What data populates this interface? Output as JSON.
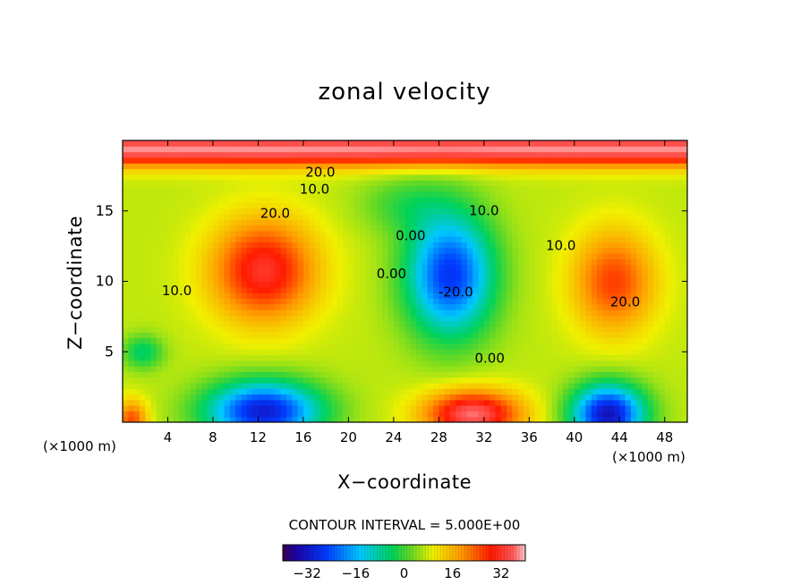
{
  "chart_data": {
    "type": "heatmap",
    "title": "zonal velocity",
    "xlabel": "X−coordinate",
    "ylabel": "Z−coordinate",
    "x_unit": "(×1000 m)",
    "xlim": [
      0,
      50
    ],
    "ylim": [
      0,
      20
    ],
    "x_ticks": [
      4,
      8,
      12,
      16,
      20,
      24,
      28,
      32,
      36,
      40,
      44,
      48
    ],
    "x_tick_labels": [
      "4",
      "8",
      "12",
      "16",
      "20",
      "24",
      "28",
      "32",
      "36",
      "40",
      "44",
      "48"
    ],
    "y_ticks": [
      5,
      10,
      15
    ],
    "y_tick_labels": [
      "5",
      "10",
      "15"
    ],
    "contour_interval_text": "CONTOUR INTERVAL = 5.000E+00",
    "contour_interval": 5,
    "colorbar": {
      "range": [
        -40,
        40
      ],
      "ticks": [
        -32,
        -16,
        0,
        16,
        32
      ],
      "tick_labels": [
        "−32",
        "−16",
        "0",
        "16",
        "32"
      ]
    },
    "features": [
      {
        "type": "jet",
        "name": "top jet",
        "x": 25,
        "z": 19.3,
        "peak": 38
      },
      {
        "type": "max",
        "name": "upper-left maximum",
        "x": 12.5,
        "z": 10.8,
        "peak": 34
      },
      {
        "type": "min",
        "name": "central minimum",
        "x": 29,
        "z": 10.5,
        "peak": -28
      },
      {
        "type": "max",
        "name": "right maximum",
        "x": 43.5,
        "z": 10,
        "peak": 25
      },
      {
        "type": "min",
        "name": "lower-left minimum",
        "x": 12.5,
        "z": 1,
        "peak": -32
      },
      {
        "type": "max",
        "name": "lower-center maximum",
        "x": 31,
        "z": 0.8,
        "peak": 36
      },
      {
        "type": "min",
        "name": "lower-right minimum",
        "x": 43,
        "z": 0.8,
        "peak": -35
      },
      {
        "type": "max",
        "name": "bottom-left corner maximum",
        "x": 1,
        "z": 0.3,
        "peak": 25
      },
      {
        "type": "min",
        "name": "left edge small minimum",
        "x": 1.8,
        "z": 5,
        "peak": -7
      }
    ],
    "contour_labels": [
      {
        "text": "20.0",
        "x": 17.5,
        "z": 17.7
      },
      {
        "text": "10.0",
        "x": 17,
        "z": 16.5
      },
      {
        "text": "20.0",
        "x": 13.5,
        "z": 14.8
      },
      {
        "text": "10.0",
        "x": 4.8,
        "z": 9.3
      },
      {
        "text": "0.00",
        "x": 25.5,
        "z": 13.2
      },
      {
        "text": "0.00",
        "x": 23.8,
        "z": 10.5
      },
      {
        "text": "10.0",
        "x": 32,
        "z": 15
      },
      {
        "text": "-20.0",
        "x": 29.5,
        "z": 9.2
      },
      {
        "text": "0.00",
        "x": 32.5,
        "z": 4.5
      },
      {
        "text": "10.0",
        "x": 38.8,
        "z": 12.5
      },
      {
        "text": "20.0",
        "x": 44.5,
        "z": 8.5
      }
    ]
  }
}
